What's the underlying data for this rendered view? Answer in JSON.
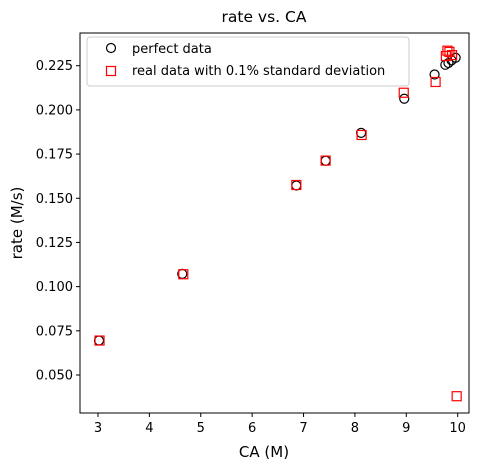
{
  "chart_data": {
    "type": "scatter",
    "title": "rate vs. CA",
    "xlabel": "CA (M)",
    "ylabel": "rate (M/s)",
    "xlim": [
      2.65,
      10.22
    ],
    "ylim": [
      0.0285,
      0.2435
    ],
    "xticks": [
      "3",
      "4",
      "5",
      "6",
      "7",
      "8",
      "9",
      "10"
    ],
    "yticks": [
      "0.050",
      "0.075",
      "0.100",
      "0.125",
      "0.150",
      "0.175",
      "0.200",
      "0.225"
    ],
    "grid": false,
    "legend": "upper-left",
    "series": [
      {
        "name": "perfect data",
        "marker": "circle",
        "color": "#000000",
        "x": [
          3.02,
          4.64,
          6.86,
          7.43,
          8.12,
          8.96,
          9.55,
          9.76,
          9.82,
          9.88,
          9.96
        ],
        "y": [
          0.0695,
          0.1072,
          0.1572,
          0.1712,
          0.187,
          0.2063,
          0.22,
          0.2255,
          0.2265,
          0.228,
          0.2295
        ]
      },
      {
        "name": "real data with 0.1% standard deviation",
        "marker": "square",
        "color": "#ff0000",
        "x": [
          3.03,
          4.66,
          6.86,
          7.43,
          8.13,
          8.95,
          9.57,
          9.77,
          9.8,
          9.84,
          9.89,
          9.98
        ],
        "y": [
          0.0695,
          0.107,
          0.1575,
          0.1713,
          0.1858,
          0.2097,
          0.2158,
          0.2305,
          0.2335,
          0.2328,
          0.231,
          0.038
        ]
      }
    ]
  }
}
